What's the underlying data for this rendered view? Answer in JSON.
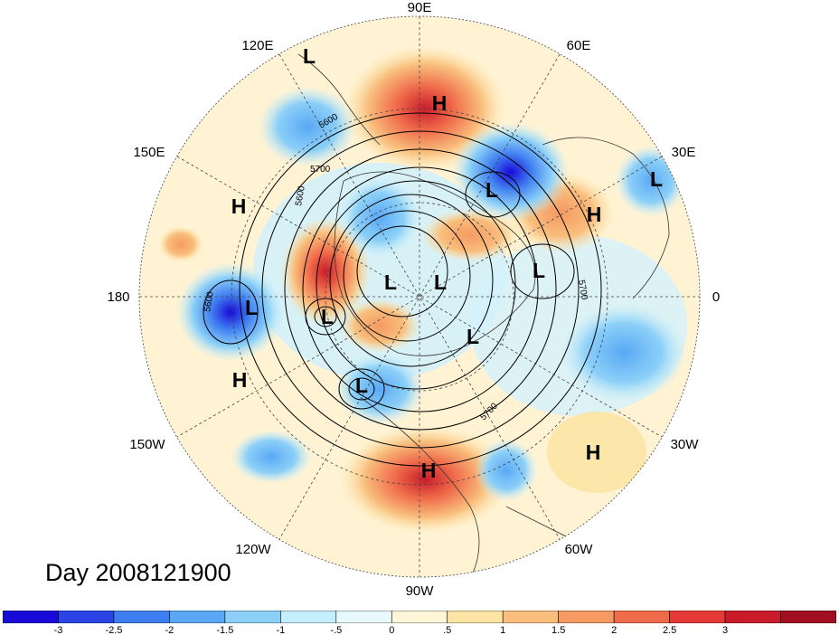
{
  "title": "Day 2008121900",
  "longitude_labels": [
    {
      "id": "90E",
      "text": "90E"
    },
    {
      "id": "60E",
      "text": "60E"
    },
    {
      "id": "30E",
      "text": "30E"
    },
    {
      "id": "0",
      "text": "0"
    },
    {
      "id": "30W",
      "text": "30W"
    },
    {
      "id": "60W",
      "text": "60W"
    },
    {
      "id": "90W",
      "text": "90W"
    },
    {
      "id": "120W",
      "text": "120W"
    },
    {
      "id": "150W",
      "text": "150W"
    },
    {
      "id": "180",
      "text": "180"
    },
    {
      "id": "150E",
      "text": "150E"
    },
    {
      "id": "120E",
      "text": "120E"
    }
  ],
  "pressure_centers": [
    "L",
    "H",
    "H",
    "L",
    "L",
    "L",
    "L",
    "H",
    "L",
    "H",
    "L",
    "L",
    "L",
    "H",
    "H",
    "L"
  ],
  "contour_labels": [
    "5600",
    "5700",
    "5600",
    "5700",
    "5700",
    "5600"
  ],
  "colorbar": {
    "colors": [
      "#1a0ad8",
      "#2a44e6",
      "#3f7ef0",
      "#5aa8f5",
      "#8cd0f8",
      "#c4eefb",
      "#e8f9fd",
      "#fff6d8",
      "#fde4a4",
      "#f9be7c",
      "#f59a62",
      "#ef6b4a",
      "#e53a38",
      "#c81c2a",
      "#a10f20"
    ],
    "tick_labels": [
      "-3",
      "-2.5",
      "-2",
      "-1.5",
      "-1",
      "-.5",
      "0",
      ".5",
      "1",
      "1.5",
      "2",
      "2.5",
      "3"
    ]
  }
}
